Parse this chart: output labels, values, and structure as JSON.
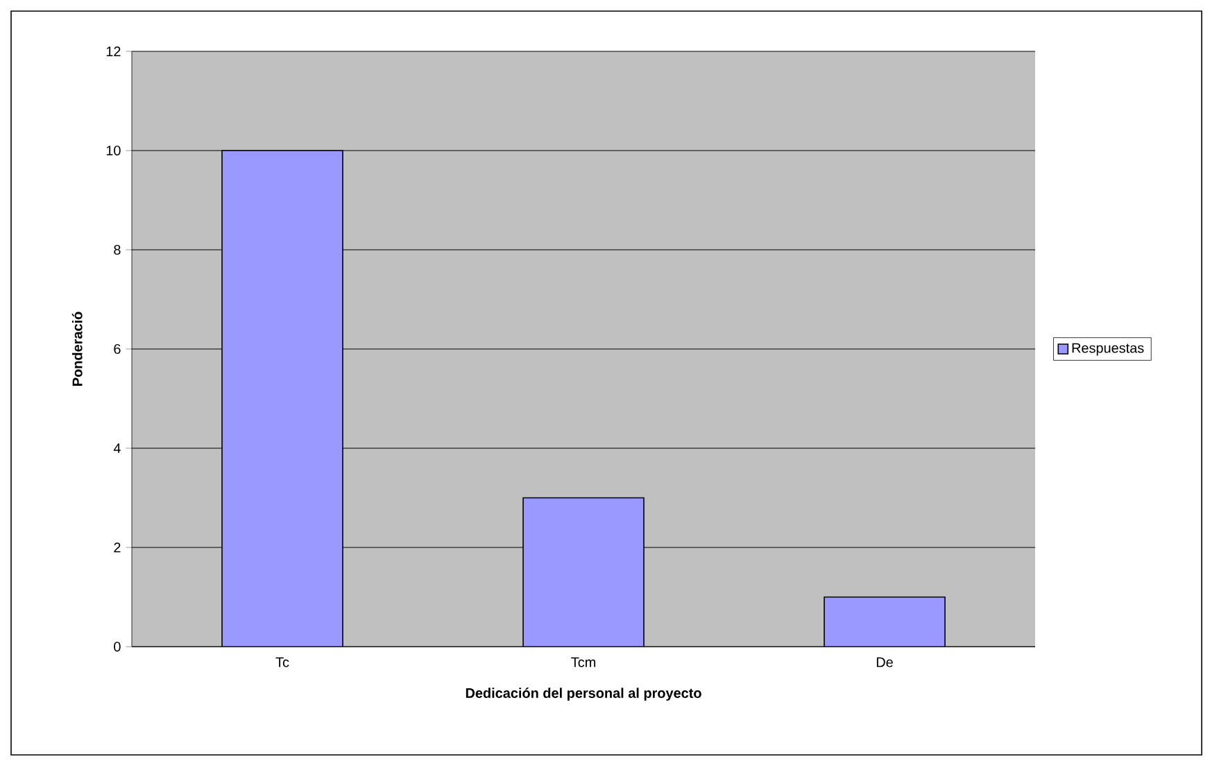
{
  "chart_data": {
    "type": "bar",
    "xlabel": "Dedicación del personal al proyecto",
    "ylabel": "Ponderació",
    "categories": [
      "Tc",
      "Tcm",
      "De"
    ],
    "series": [
      {
        "name": "Respuestas",
        "color": "#9999ff",
        "values": [
          10,
          3,
          1
        ]
      }
    ],
    "ylim": [
      0,
      12
    ],
    "yticks": [
      0,
      2,
      4,
      6,
      8,
      10,
      12
    ],
    "grid": "y",
    "legend": "right"
  }
}
